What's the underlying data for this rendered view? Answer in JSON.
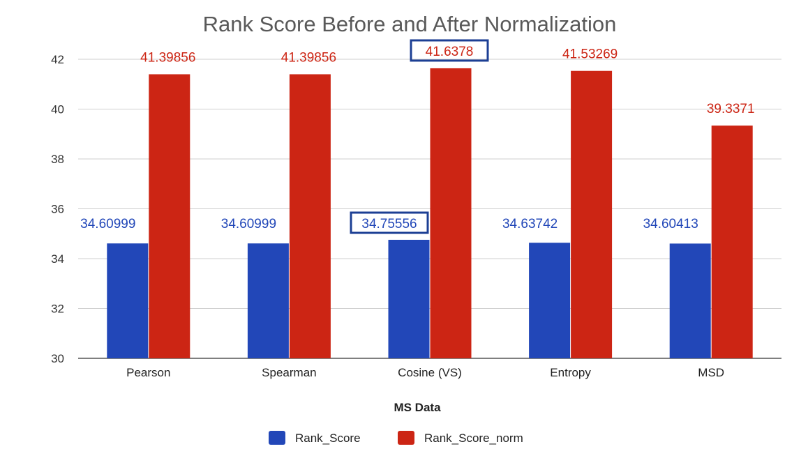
{
  "chart_data": {
    "type": "bar",
    "title": "Rank Score Before and After Normalization",
    "xlabel": "MS Data",
    "ylabel": "",
    "ylim": [
      30,
      42
    ],
    "yticks": [
      "30",
      "32",
      "34",
      "36",
      "38",
      "40",
      "42"
    ],
    "grid": true,
    "legend_position": "bottom",
    "categories": [
      "Pearson",
      "Spearman",
      "Cosine (VS)",
      "Entropy",
      "MSD"
    ],
    "series": [
      {
        "name": "Rank_Score",
        "color": "#2247b8",
        "values": [
          34.60999,
          34.60999,
          34.75556,
          34.63742,
          34.60413
        ],
        "labels": [
          "34.60999",
          "34.60999",
          "34.75556",
          "34.63742",
          "34.60413"
        ]
      },
      {
        "name": "Rank_Score_norm",
        "color": "#cc2514",
        "values": [
          41.39856,
          41.39856,
          41.6378,
          41.53269,
          39.3371
        ],
        "labels": [
          "41.39856",
          "41.39856",
          "41.6378",
          "41.53269",
          "39.3371"
        ]
      }
    ],
    "highlighted_category": "Cosine (VS)",
    "highlight_color": "#1c3f94"
  }
}
